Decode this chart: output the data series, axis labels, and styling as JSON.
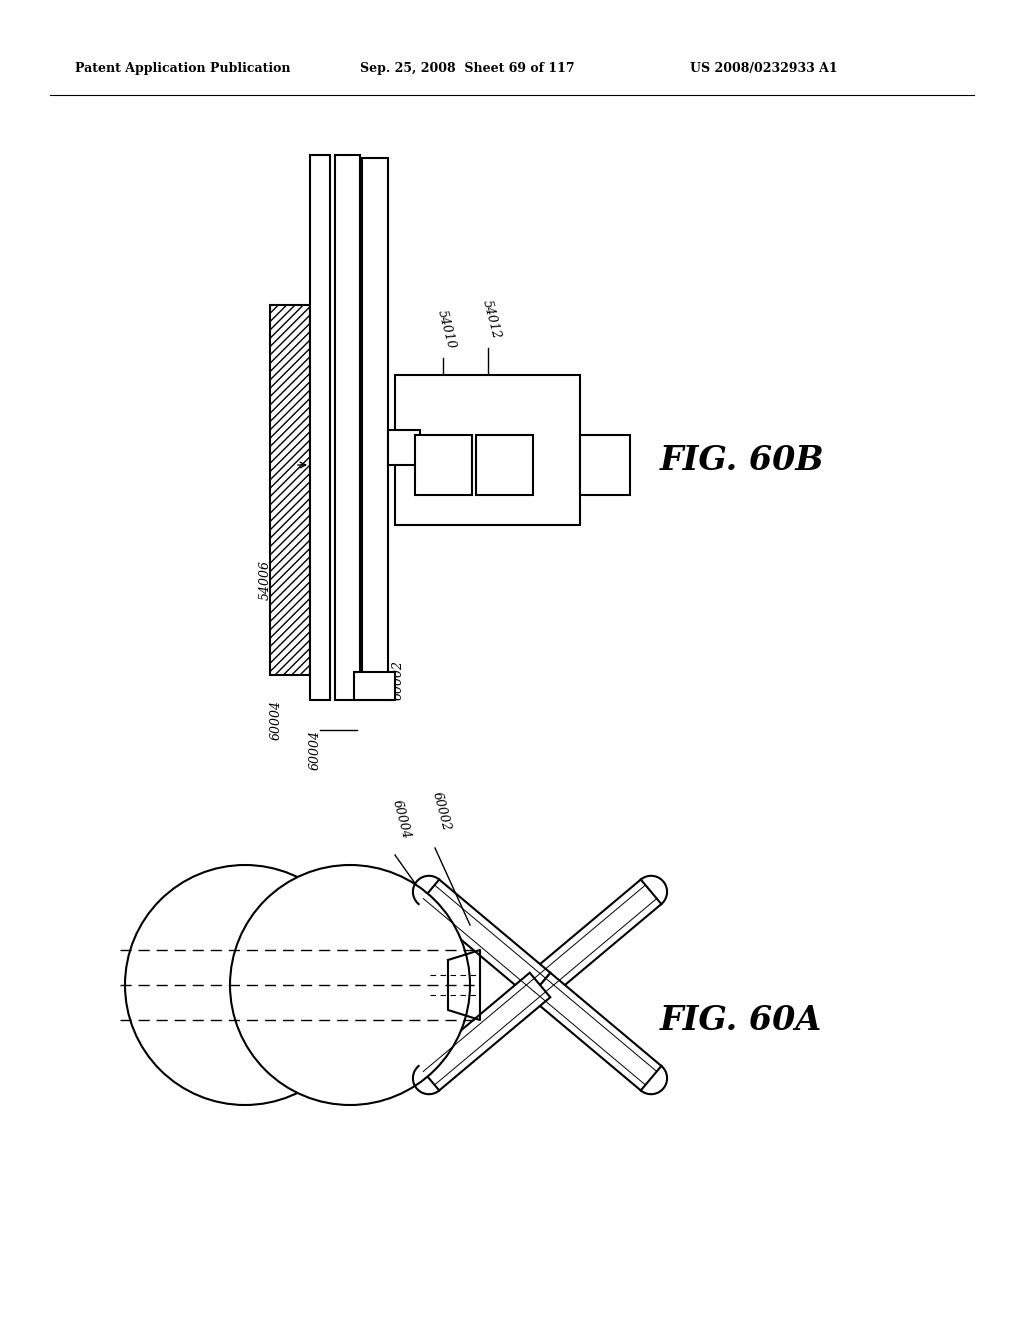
{
  "bg_color": "#ffffff",
  "header_text": "Patent Application Publication",
  "header_date": "Sep. 25, 2008  Sheet 69 of 117",
  "header_patent": "US 2008/0232933 A1",
  "fig60b_label": "FIG. 60B",
  "fig60a_label": "FIG. 60A",
  "lw": 1.5
}
